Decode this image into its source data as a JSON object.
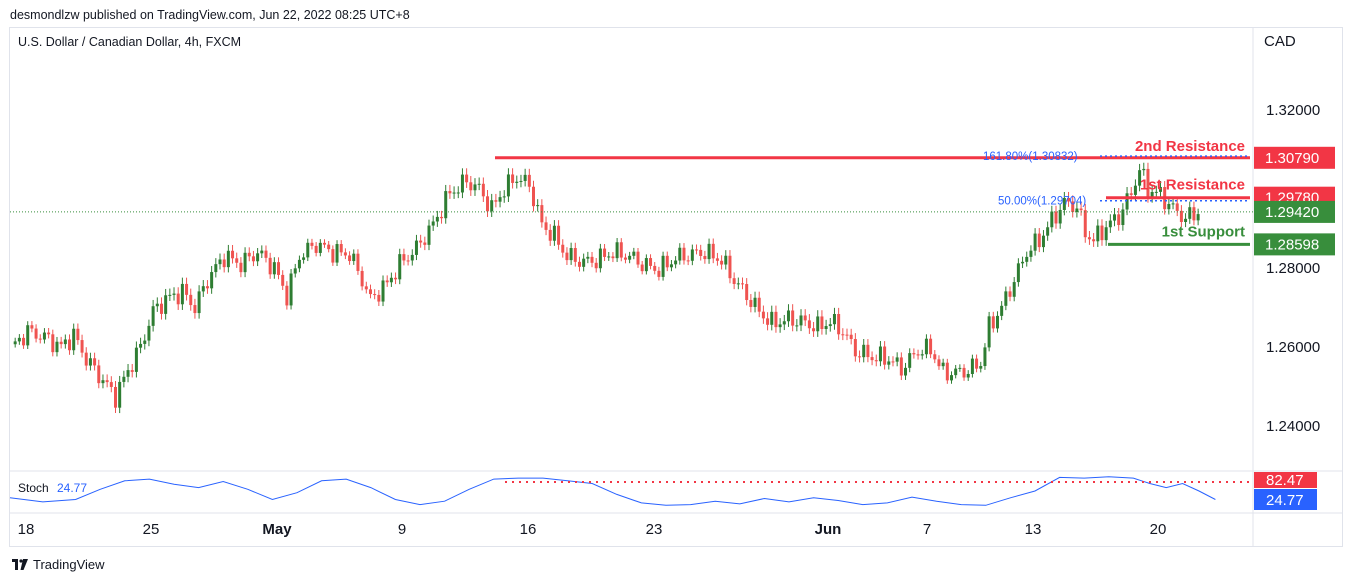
{
  "header": {
    "publisher": "desmondlzw published on TradingView.com, Jun 22, 2022 08:25 UTC+8"
  },
  "symbol": {
    "title": "U.S. Dollar / Canadian Dollar, 4h, FXCM"
  },
  "currency": "CAD",
  "footer": {
    "brand": "TradingView"
  },
  "colors": {
    "up": "#26a69a",
    "upBody": "#2e7d32",
    "down": "#ef5350",
    "resistance": "#f23645",
    "support": "#388e3c",
    "price": "#388e3c",
    "stoch": "#2962ff",
    "fib": "#2962ff"
  },
  "chart_data": {
    "type": "candlestick",
    "y_axis": {
      "ticks": [
        1.32,
        1.28,
        1.26,
        1.24
      ],
      "tick_labels": [
        "1.32000",
        "1.28000",
        "1.26000",
        "1.24000"
      ],
      "range": [
        1.2165,
        1.3365
      ]
    },
    "x_axis": {
      "labels": [
        "18",
        "25",
        "May",
        "9",
        "16",
        "23",
        "Jun",
        "7",
        "13",
        "20"
      ]
    },
    "levels": [
      {
        "name": "2nd Resistance",
        "value": 1.3079,
        "tag": "1.30790",
        "color": "#f23645"
      },
      {
        "name": "1st Resistance",
        "value": 1.2978,
        "tag": "1.29780",
        "color": "#f23645"
      },
      {
        "name": "1st Support",
        "value": 1.28598,
        "tag": "1.28598",
        "color": "#388e3c"
      }
    ],
    "last_price": {
      "value": 1.2942,
      "tag": "1.29420"
    },
    "fib_labels": [
      "161.80%(1.30832)",
      "50.00%(1.29704)"
    ],
    "close_path": [
      [
        0,
        1.2596
      ],
      [
        4,
        1.264
      ],
      [
        8,
        1.2625
      ],
      [
        12,
        1.26
      ],
      [
        15,
        1.263
      ],
      [
        18,
        1.257
      ],
      [
        22,
        1.2515
      ],
      [
        25,
        1.2475
      ],
      [
        28,
        1.254
      ],
      [
        31,
        1.26
      ],
      [
        34,
        1.269
      ],
      [
        37,
        1.272
      ],
      [
        41,
        1.274
      ],
      [
        44,
        1.27
      ],
      [
        47,
        1.277
      ],
      [
        51,
        1.283
      ],
      [
        55,
        1.281
      ],
      [
        59,
        1.284
      ],
      [
        63,
        1.28
      ],
      [
        66,
        1.273
      ],
      [
        69,
        1.283
      ],
      [
        73,
        1.286
      ],
      [
        77,
        1.284
      ],
      [
        81,
        1.2835
      ],
      [
        84,
        1.277
      ],
      [
        86,
        1.272
      ],
      [
        90,
        1.276
      ],
      [
        93,
        1.281
      ],
      [
        97,
        1.285
      ],
      [
        101,
        1.291
      ],
      [
        105,
        1.299
      ],
      [
        109,
        1.302
      ],
      [
        112,
        1.3
      ],
      [
        115,
        1.295
      ],
      [
        118,
        1.3
      ],
      [
        121,
        1.303
      ],
      [
        124,
        1.301
      ],
      [
        127,
        1.291
      ],
      [
        130,
        1.288
      ],
      [
        133,
        1.283
      ],
      [
        137,
        1.2815
      ],
      [
        140,
        1.282
      ],
      [
        144,
        1.284
      ],
      [
        148,
        1.283
      ],
      [
        151,
        1.281
      ],
      [
        155,
        1.2795
      ],
      [
        159,
        1.2825
      ],
      [
        163,
        1.2835
      ],
      [
        166,
        1.284
      ],
      [
        170,
        1.282
      ],
      [
        173,
        1.277
      ],
      [
        176,
        1.273
      ],
      [
        179,
        1.269
      ],
      [
        182,
        1.266
      ],
      [
        186,
        1.267
      ],
      [
        189,
        1.2665
      ],
      [
        193,
        1.265
      ],
      [
        196,
        1.2665
      ],
      [
        199,
        1.264
      ],
      [
        202,
        1.259
      ],
      [
        206,
        1.2575
      ],
      [
        210,
        1.257
      ],
      [
        213,
        1.2545
      ],
      [
        217,
        1.259
      ],
      [
        220,
        1.2595
      ],
      [
        223,
        1.2535
      ],
      [
        226,
        1.2535
      ],
      [
        229,
        1.254
      ],
      [
        232,
        1.256
      ],
      [
        234,
        1.265
      ],
      [
        237,
        1.27
      ],
      [
        240,
        1.277
      ],
      [
        243,
        1.284
      ],
      [
        246,
        1.287
      ],
      [
        249,
        1.292
      ],
      [
        252,
        1.2965
      ],
      [
        255,
        1.2955
      ],
      [
        257,
        1.289
      ],
      [
        259,
        1.287
      ],
      [
        262,
        1.2905
      ],
      [
        265,
        1.293
      ],
      [
        268,
        1.299
      ],
      [
        270,
        1.305
      ],
      [
        272,
        1.3
      ],
      [
        275,
        1.2985
      ],
      [
        278,
        1.295
      ],
      [
        281,
        1.2925
      ],
      [
        284,
        1.2942
      ]
    ],
    "stochastic": {
      "label": "Stoch",
      "value": 24.77,
      "value_label": "24.77",
      "upper_label": "82.47",
      "path": [
        [
          0,
          30
        ],
        [
          4,
          18
        ],
        [
          8,
          25
        ],
        [
          11,
          55
        ],
        [
          14,
          80
        ],
        [
          17,
          85
        ],
        [
          20,
          70
        ],
        [
          23,
          60
        ],
        [
          26,
          78
        ],
        [
          29,
          55
        ],
        [
          32,
          25
        ],
        [
          35,
          45
        ],
        [
          38,
          80
        ],
        [
          41,
          85
        ],
        [
          44,
          60
        ],
        [
          47,
          25
        ],
        [
          50,
          10
        ],
        [
          53,
          20
        ],
        [
          56,
          55
        ],
        [
          59,
          85
        ],
        [
          62,
          88
        ],
        [
          65,
          88
        ],
        [
          68,
          80
        ],
        [
          71,
          72
        ],
        [
          74,
          40
        ],
        [
          77,
          15
        ],
        [
          80,
          8
        ],
        [
          83,
          10
        ],
        [
          86,
          20
        ],
        [
          89,
          12
        ],
        [
          92,
          28
        ],
        [
          95,
          18
        ],
        [
          98,
          30
        ],
        [
          101,
          22
        ],
        [
          104,
          10
        ],
        [
          107,
          15
        ],
        [
          110,
          32
        ],
        [
          113,
          20
        ],
        [
          116,
          10
        ],
        [
          119,
          8
        ],
        [
          122,
          30
        ],
        [
          125,
          50
        ],
        [
          128,
          90
        ],
        [
          131,
          88
        ],
        [
          134,
          92
        ],
        [
          137,
          88
        ],
        [
          139,
          72
        ],
        [
          141,
          60
        ],
        [
          143,
          72
        ],
        [
          145,
          50
        ],
        [
          147,
          25
        ]
      ]
    },
    "title": "",
    "xlabel": "",
    "ylabel": "",
    "grid": false,
    "legend": "none"
  }
}
